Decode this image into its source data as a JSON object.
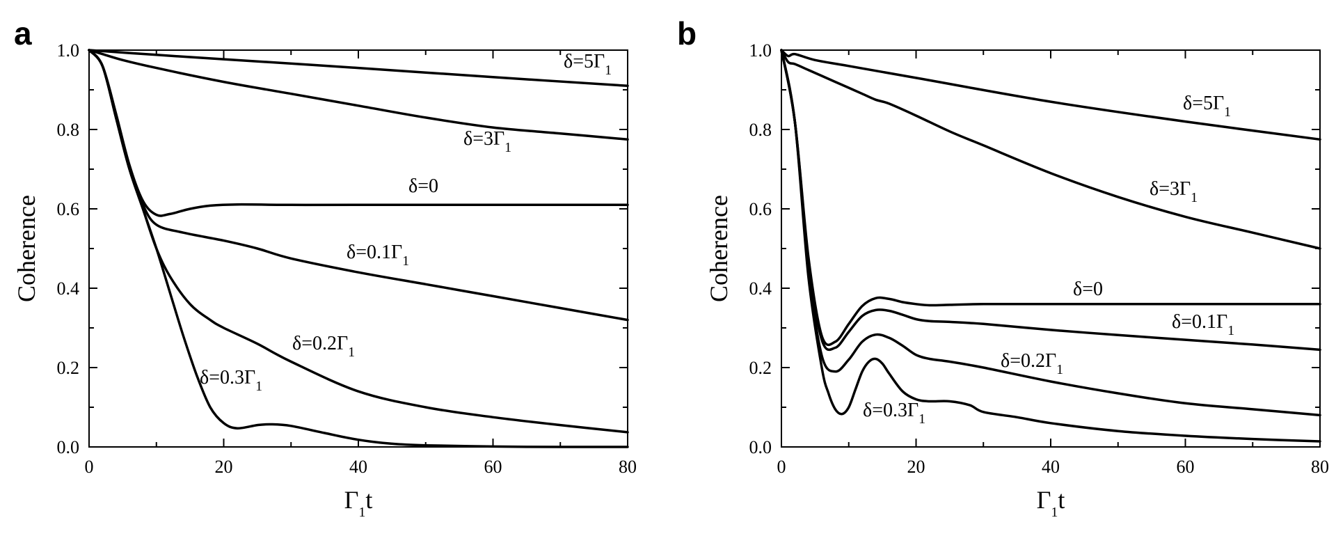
{
  "chart_data": [
    {
      "type": "line",
      "panel_label": "a",
      "xlabel": {
        "main": "Γ",
        "sub": "1",
        "after": "t"
      },
      "ylabel": "Coherence",
      "xlim": [
        0,
        80
      ],
      "ylim": [
        0,
        1
      ],
      "xticks": [
        0,
        20,
        40,
        60,
        80
      ],
      "xtick_labels": [
        "0",
        "20",
        "40",
        "60",
        "80"
      ],
      "yticks": [
        0,
        0.2,
        0.4,
        0.6,
        0.8,
        1.0
      ],
      "ytick_labels": [
        "0.0",
        "0.2",
        "0.4",
        "0.6",
        "0.8",
        "1.0"
      ],
      "series": [
        {
          "name": "δ=5Γ1",
          "label": {
            "main": "δ=5Γ",
            "sub": "1"
          },
          "x": [
            0,
            10,
            20,
            40,
            60,
            80
          ],
          "y": [
            1.0,
            0.988,
            0.977,
            0.955,
            0.932,
            0.91
          ]
        },
        {
          "name": "δ=3Γ1",
          "label": {
            "main": "δ=3Γ",
            "sub": "1"
          },
          "x": [
            0,
            2,
            5,
            10,
            20,
            30,
            40,
            50,
            60,
            70,
            80
          ],
          "y": [
            1.0,
            0.99,
            0.975,
            0.955,
            0.92,
            0.89,
            0.86,
            0.83,
            0.805,
            0.79,
            0.775
          ]
        },
        {
          "name": "δ=0",
          "label": {
            "main": "δ=0",
            "sub": ""
          },
          "x": [
            0,
            2,
            4,
            6,
            8,
            10,
            12,
            15,
            18,
            22,
            30,
            40,
            60,
            80
          ],
          "y": [
            1.0,
            0.96,
            0.84,
            0.71,
            0.62,
            0.585,
            0.587,
            0.6,
            0.608,
            0.611,
            0.61,
            0.61,
            0.61,
            0.61
          ]
        },
        {
          "name": "δ=0.1Γ1",
          "label": {
            "main": "δ=0.1Γ",
            "sub": "1"
          },
          "x": [
            0,
            2,
            4,
            6,
            8,
            10,
            14,
            20,
            25,
            30,
            40,
            50,
            60,
            70,
            80
          ],
          "y": [
            1.0,
            0.96,
            0.83,
            0.7,
            0.61,
            0.56,
            0.54,
            0.52,
            0.5,
            0.475,
            0.44,
            0.41,
            0.38,
            0.35,
            0.32
          ]
        },
        {
          "name": "δ=0.2Γ1",
          "label": {
            "main": "δ=0.2Γ",
            "sub": "1"
          },
          "x": [
            0,
            2,
            4,
            6,
            8,
            10,
            12,
            15,
            18,
            20,
            25,
            30,
            40,
            50,
            60,
            70,
            80
          ],
          "y": [
            1.0,
            0.96,
            0.83,
            0.7,
            0.6,
            0.5,
            0.43,
            0.36,
            0.32,
            0.3,
            0.26,
            0.215,
            0.14,
            0.1,
            0.075,
            0.055,
            0.037
          ]
        },
        {
          "name": "δ=0.3Γ1",
          "label": {
            "main": "δ=0.3Γ",
            "sub": "1"
          },
          "x": [
            0,
            2,
            4,
            6,
            8,
            10,
            12,
            14,
            16,
            18,
            20,
            22,
            25,
            27,
            30,
            35,
            40,
            45,
            50,
            60,
            70,
            80
          ],
          "y": [
            1.0,
            0.96,
            0.83,
            0.7,
            0.6,
            0.5,
            0.39,
            0.28,
            0.18,
            0.1,
            0.06,
            0.047,
            0.055,
            0.057,
            0.053,
            0.035,
            0.018,
            0.008,
            0.004,
            0.001,
            0,
            0
          ]
        }
      ]
    },
    {
      "type": "line",
      "panel_label": "b",
      "xlabel": {
        "main": "Γ",
        "sub": "1",
        "after": "t"
      },
      "ylabel": "Coherence",
      "xlim": [
        0,
        80
      ],
      "ylim": [
        0,
        1
      ],
      "xticks": [
        0,
        20,
        40,
        60,
        80
      ],
      "xtick_labels": [
        "0",
        "20",
        "40",
        "60",
        "80"
      ],
      "yticks": [
        0,
        0.2,
        0.4,
        0.6,
        0.8,
        1.0
      ],
      "ytick_labels": [
        "0.0",
        "0.2",
        "0.4",
        "0.6",
        "0.8",
        "1.0"
      ],
      "series": [
        {
          "name": "δ=5Γ1",
          "label": {
            "main": "δ=5Γ",
            "sub": "1"
          },
          "x": [
            0,
            1,
            2,
            5,
            10,
            20,
            40,
            60,
            80
          ],
          "y": [
            1.0,
            0.985,
            0.99,
            0.975,
            0.96,
            0.93,
            0.87,
            0.82,
            0.775
          ]
        },
        {
          "name": "δ=3Γ1",
          "label": {
            "main": "δ=3Γ",
            "sub": "1"
          },
          "x": [
            0,
            1,
            2,
            4,
            6,
            8,
            10,
            12,
            14,
            16,
            20,
            25,
            30,
            40,
            50,
            60,
            70,
            80
          ],
          "y": [
            1.0,
            0.97,
            0.965,
            0.95,
            0.935,
            0.92,
            0.905,
            0.89,
            0.875,
            0.865,
            0.835,
            0.795,
            0.76,
            0.69,
            0.63,
            0.58,
            0.54,
            0.5
          ]
        },
        {
          "name": "δ=0",
          "label": {
            "main": "δ=0",
            "sub": ""
          },
          "x": [
            0,
            2,
            4,
            6,
            8,
            10,
            12,
            14,
            16,
            18,
            20,
            22,
            25,
            30,
            40,
            60,
            80
          ],
          "y": [
            1.0,
            0.82,
            0.48,
            0.28,
            0.265,
            0.31,
            0.355,
            0.375,
            0.373,
            0.365,
            0.36,
            0.357,
            0.358,
            0.36,
            0.36,
            0.36,
            0.36
          ]
        },
        {
          "name": "δ=0.1Γ1",
          "label": {
            "main": "δ=0.1Γ",
            "sub": "1"
          },
          "x": [
            0,
            2,
            4,
            6,
            8,
            10,
            12,
            14,
            16,
            18,
            20,
            22,
            25,
            30,
            40,
            50,
            60,
            70,
            80
          ],
          "y": [
            1.0,
            0.82,
            0.47,
            0.27,
            0.25,
            0.29,
            0.33,
            0.345,
            0.343,
            0.333,
            0.322,
            0.317,
            0.315,
            0.31,
            0.295,
            0.282,
            0.27,
            0.258,
            0.245
          ]
        },
        {
          "name": "δ=0.2Γ1",
          "label": {
            "main": "δ=0.2Γ",
            "sub": "1"
          },
          "x": [
            0,
            2,
            4,
            6,
            8,
            10,
            12,
            14,
            16,
            18,
            20,
            22,
            25,
            30,
            40,
            50,
            60,
            70,
            80
          ],
          "y": [
            1.0,
            0.82,
            0.45,
            0.23,
            0.19,
            0.22,
            0.265,
            0.283,
            0.275,
            0.255,
            0.232,
            0.222,
            0.215,
            0.2,
            0.165,
            0.135,
            0.11,
            0.095,
            0.08
          ]
        },
        {
          "name": "δ=0.3Γ1",
          "label": {
            "main": "δ=0.3Γ",
            "sub": "1"
          },
          "x": [
            0,
            2,
            4,
            6,
            7,
            8,
            9,
            10,
            11,
            12,
            13,
            14,
            15,
            16,
            18,
            20,
            22,
            25,
            28,
            30,
            35,
            40,
            50,
            60,
            70,
            80
          ],
          "y": [
            1.0,
            0.82,
            0.43,
            0.2,
            0.135,
            0.095,
            0.083,
            0.1,
            0.145,
            0.19,
            0.215,
            0.222,
            0.21,
            0.185,
            0.14,
            0.12,
            0.115,
            0.115,
            0.105,
            0.088,
            0.075,
            0.06,
            0.04,
            0.028,
            0.02,
            0.014
          ]
        }
      ]
    }
  ]
}
